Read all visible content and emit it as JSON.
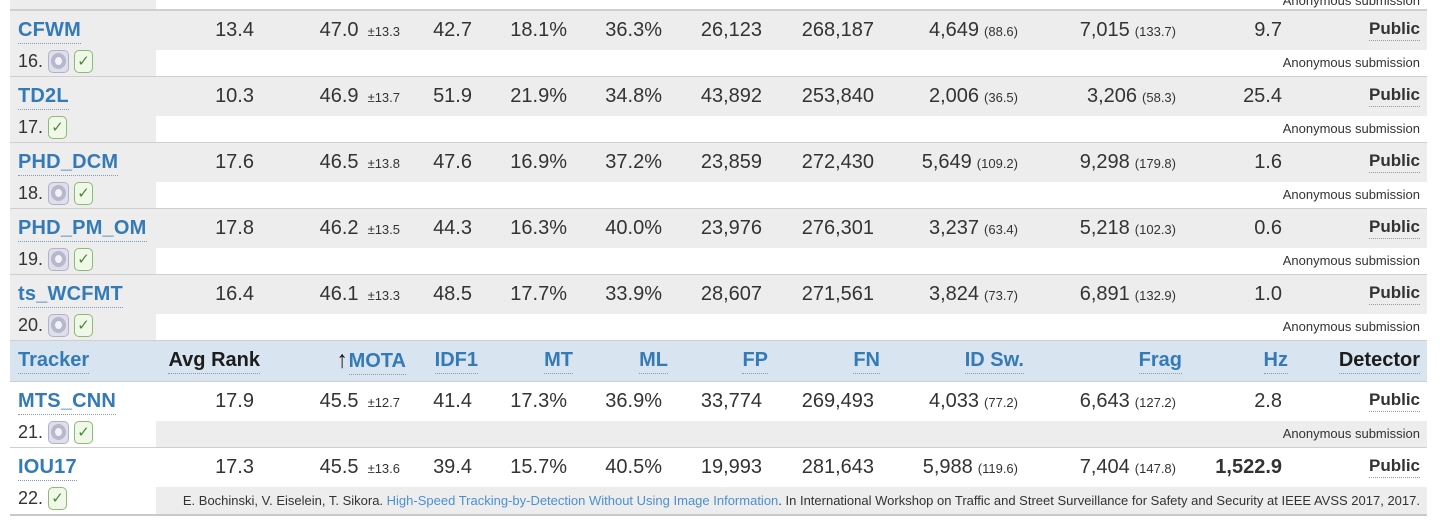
{
  "colors": {
    "link_blue": "#337ab7",
    "citation_link_blue": "#4a90d2",
    "header_bg": "#d8e5f1",
    "row_grey": "#ededed",
    "divider": "#cfcfcf",
    "text": "#333333",
    "check_green": "#4a8a33"
  },
  "top_partial": {
    "submission": "Anonymous submission"
  },
  "table": {
    "headers": [
      {
        "label": "Tracker",
        "style": "blue",
        "align": "left"
      },
      {
        "label": "Avg Rank",
        "style": "dark"
      },
      {
        "label": "MOTA",
        "style": "blue",
        "arrow": true
      },
      {
        "label": "IDF1",
        "style": "blue"
      },
      {
        "label": "MT",
        "style": "blue"
      },
      {
        "label": "ML",
        "style": "blue"
      },
      {
        "label": "FP",
        "style": "blue"
      },
      {
        "label": "FN",
        "style": "blue"
      },
      {
        "label": "ID Sw.",
        "style": "blue"
      },
      {
        "label": "Frag",
        "style": "blue"
      },
      {
        "label": "Hz",
        "style": "blue"
      },
      {
        "label": "Detector",
        "style": "dark"
      }
    ],
    "rows_above_header": [
      {
        "name": "CFWM",
        "rank": "16.",
        "icons": {
          "aperture": true,
          "check": true
        },
        "avg_rank": "13.4",
        "mota": "47.0",
        "mota_err": "±13.3",
        "idf1": "42.7",
        "mt": "18.1%",
        "ml": "36.3%",
        "fp": "26,123",
        "fn": "268,187",
        "idsw": "4,649",
        "idsw_rel": "(88.6)",
        "frag": "7,015",
        "frag_rel": "(133.7)",
        "hz": "9.7",
        "detector": "Public",
        "submission": "Anonymous submission"
      },
      {
        "name": "TD2L",
        "rank": "17.",
        "icons": {
          "aperture": false,
          "check": true
        },
        "avg_rank": "10.3",
        "mota": "46.9",
        "mota_err": "±13.7",
        "idf1": "51.9",
        "mt": "21.9%",
        "ml": "34.8%",
        "fp": "43,892",
        "fn": "253,840",
        "idsw": "2,006",
        "idsw_rel": "(36.5)",
        "frag": "3,206",
        "frag_rel": "(58.3)",
        "hz": "25.4",
        "detector": "Public",
        "submission": "Anonymous submission"
      },
      {
        "name": "PHD_DCM",
        "rank": "18.",
        "icons": {
          "aperture": true,
          "check": true
        },
        "avg_rank": "17.6",
        "mota": "46.5",
        "mota_err": "±13.8",
        "idf1": "47.6",
        "mt": "16.9%",
        "ml": "37.2%",
        "fp": "23,859",
        "fn": "272,430",
        "idsw": "5,649",
        "idsw_rel": "(109.2)",
        "frag": "9,298",
        "frag_rel": "(179.8)",
        "hz": "1.6",
        "detector": "Public",
        "submission": "Anonymous submission"
      },
      {
        "name": "PHD_PM_OM",
        "rank": "19.",
        "icons": {
          "aperture": true,
          "check": true
        },
        "avg_rank": "17.8",
        "mota": "46.2",
        "mota_err": "±13.5",
        "idf1": "44.3",
        "mt": "16.3%",
        "ml": "40.0%",
        "fp": "23,976",
        "fn": "276,301",
        "idsw": "3,237",
        "idsw_rel": "(63.4)",
        "frag": "5,218",
        "frag_rel": "(102.3)",
        "hz": "0.6",
        "detector": "Public",
        "submission": "Anonymous submission"
      },
      {
        "name": "ts_WCFMT",
        "rank": "20.",
        "icons": {
          "aperture": true,
          "check": true
        },
        "avg_rank": "16.4",
        "mota": "46.1",
        "mota_err": "±13.3",
        "idf1": "48.5",
        "mt": "17.7%",
        "ml": "33.9%",
        "fp": "28,607",
        "fn": "271,561",
        "idsw": "3,824",
        "idsw_rel": "(73.7)",
        "frag": "6,891",
        "frag_rel": "(132.9)",
        "hz": "1.0",
        "detector": "Public",
        "submission": "Anonymous submission"
      }
    ],
    "rows_below_header": [
      {
        "name": "MTS_CNN",
        "rank": "21.",
        "icons": {
          "aperture": true,
          "check": true
        },
        "avg_rank": "17.9",
        "mota": "45.5",
        "mota_err": "±12.7",
        "idf1": "41.4",
        "mt": "17.3%",
        "ml": "36.9%",
        "fp": "33,774",
        "fn": "269,493",
        "idsw": "4,033",
        "idsw_rel": "(77.2)",
        "frag": "6,643",
        "frag_rel": "(127.2)",
        "hz": "2.8",
        "detector": "Public",
        "submission": "Anonymous submission"
      },
      {
        "name": "IOU17",
        "rank": "22.",
        "icons": {
          "aperture": false,
          "check": true
        },
        "avg_rank": "17.3",
        "mota": "45.5",
        "mota_err": "±13.6",
        "idf1": "39.4",
        "mt": "15.7%",
        "ml": "40.5%",
        "fp": "19,993",
        "fn": "281,643",
        "idsw": "5,988",
        "idsw_rel": "(119.6)",
        "frag": "7,404",
        "frag_rel": "(147.8)",
        "hz": "1,522.9",
        "hz_bold": true,
        "detector": "Public",
        "citation": {
          "authors": "E. Bochinski, V. Eiselein, T. Sikora. ",
          "title": "High-Speed Tracking-by-Detection Without Using Image Information",
          "rest": ". In International Workshop on Traffic and Street Surveillance for Safety and Security at IEEE AVSS 2017, 2017."
        }
      }
    ]
  }
}
